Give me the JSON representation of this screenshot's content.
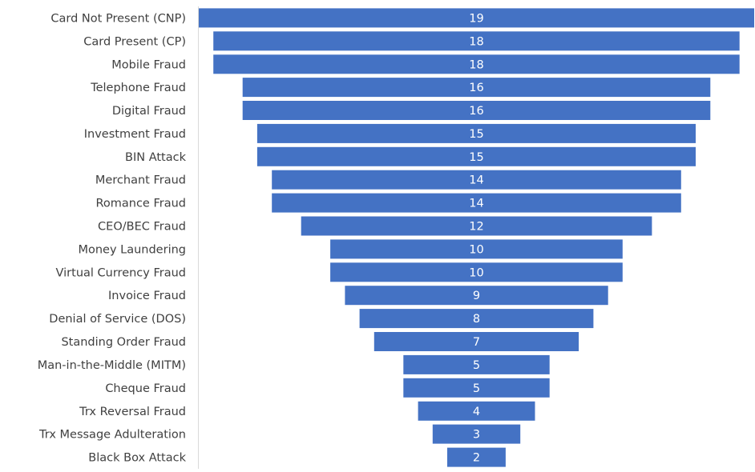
{
  "chart_data": {
    "type": "bar",
    "orientation": "horizontal-funnel",
    "categories": [
      "Card Not Present (CNP)",
      "Card Present (CP)",
      "Mobile Fraud",
      "Telephone Fraud",
      "Digital Fraud",
      "Investment Fraud",
      "BIN Attack",
      "Merchant Fraud",
      "Romance Fraud",
      "CEO/BEC Fraud",
      "Money Laundering",
      "Virtual Currency Fraud",
      "Invoice Fraud",
      "Denial of Service (DOS)",
      "Standing Order Fraud",
      "Man-in-the-Middle (MITM)",
      "Cheque Fraud",
      "Trx Reversal Fraud",
      "Trx Message Adulteration",
      "Black Box Attack"
    ],
    "values": [
      19,
      18,
      18,
      16,
      16,
      15,
      15,
      14,
      14,
      12,
      10,
      10,
      9,
      8,
      7,
      5,
      5,
      4,
      3,
      2
    ],
    "title": "",
    "xlabel": "",
    "ylabel": "",
    "xlim": [
      0,
      19
    ],
    "grid": false,
    "legend": "none",
    "data_labels": true,
    "colors": {
      "bar": "#4472C4",
      "bar_label": "#FFFFFF",
      "category_label": "#404040",
      "axis_line": "#D9D9D9"
    }
  }
}
